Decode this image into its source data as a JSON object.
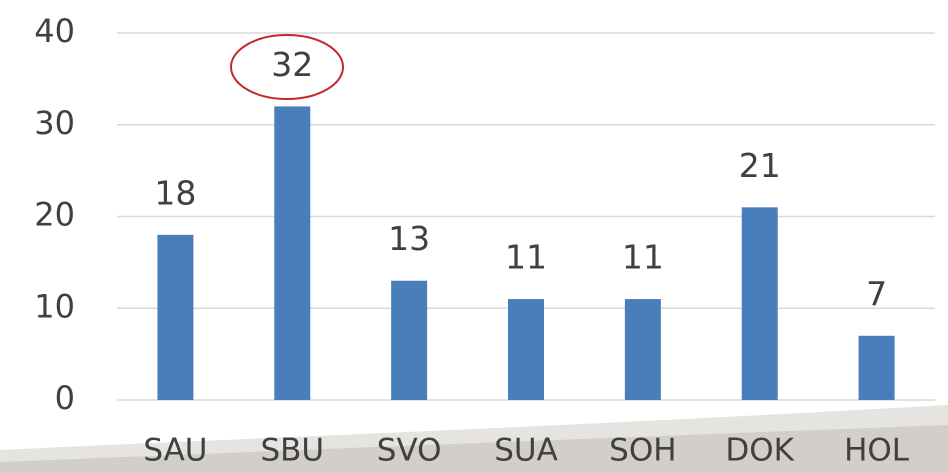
{
  "chart_data": {
    "type": "bar",
    "categories": [
      "SAU",
      "SBU",
      "SVO",
      "SUA",
      "SOH",
      "DOK",
      "HOL"
    ],
    "values": [
      18,
      32,
      13,
      11,
      11,
      21,
      7
    ],
    "color": "#4a7ebb",
    "ylim": [
      0,
      40
    ],
    "yticks": [
      0,
      10,
      20,
      30,
      40
    ],
    "grid": true
  }
}
